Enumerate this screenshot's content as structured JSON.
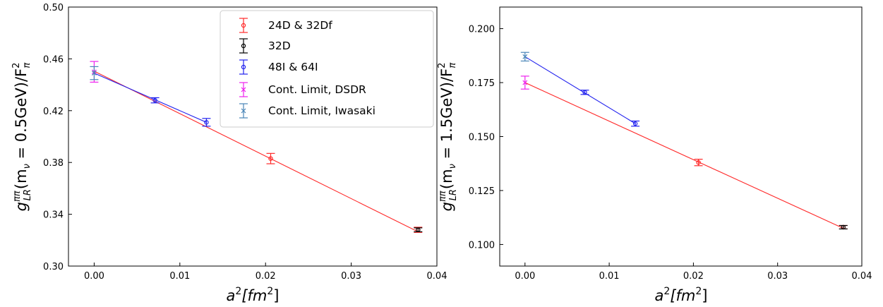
{
  "chart_data": [
    {
      "type": "scatter",
      "xlabel_parts": [
        "a",
        "2",
        "[fm",
        "2",
        "]"
      ],
      "ylabel_parts": [
        "g",
        "ππ",
        "LR",
        "(m",
        "ν",
        " = 0.5GeV)/F",
        "2",
        "π"
      ],
      "xlim": [
        -0.003,
        0.04
      ],
      "ylim": [
        0.3,
        0.5
      ],
      "xticks": [
        "0.00",
        "0.01",
        "0.02",
        "0.03",
        "0.04"
      ],
      "yticks": [
        "0.30",
        "0.34",
        "0.38",
        "0.42",
        "0.46",
        "0.50"
      ],
      "legend_position": "top-right",
      "series": [
        {
          "name": "24D & 32Df",
          "color": "#ff2a2a",
          "marker": "circle",
          "x": [
            0.0206,
            0.0378
          ],
          "y": [
            0.383,
            0.328
          ],
          "err": [
            0.004,
            0.002
          ],
          "fit": [
            [
              0.0,
              0.4505
            ],
            [
              0.0378,
              0.3265
            ]
          ]
        },
        {
          "name": "32D",
          "color": "#000000",
          "marker": "circle",
          "x": [
            0.0378
          ],
          "y": [
            0.328
          ],
          "err": [
            0.0015
          ],
          "fit": []
        },
        {
          "name": "48I & 64I",
          "color": "#2222ee",
          "marker": "circle",
          "x": [
            0.0071,
            0.0131
          ],
          "y": [
            0.428,
            0.411
          ],
          "err": [
            0.002,
            0.003
          ],
          "fit": [
            [
              0.0,
              0.449
            ],
            [
              0.0131,
              0.411
            ]
          ]
        },
        {
          "name": "Cont. Limit, DSDR",
          "color": "#ee22ee",
          "marker": "x",
          "x": [
            0.0
          ],
          "y": [
            0.45
          ],
          "err": [
            0.008
          ],
          "fit": []
        },
        {
          "name": "Cont. Limit, Iwasaki",
          "color": "#4a86b8",
          "marker": "x",
          "x": [
            0.0
          ],
          "y": [
            0.449
          ],
          "err": [
            0.005
          ],
          "fit": []
        }
      ]
    },
    {
      "type": "scatter",
      "xlabel_parts": [
        "a",
        "2",
        "[fm",
        "2",
        "]"
      ],
      "ylabel_parts": [
        "g",
        "ππ",
        "LR",
        "(m",
        "ν",
        " = 1.5GeV)/F",
        "2",
        "π"
      ],
      "xlim": [
        -0.003,
        0.04
      ],
      "ylim": [
        0.09,
        0.21
      ],
      "xticks": [
        "0.00",
        "0.01",
        "0.02",
        "0.03",
        "0.04"
      ],
      "yticks": [
        "0.100",
        "0.125",
        "0.150",
        "0.175",
        "0.200"
      ],
      "series": [
        {
          "name": "24D & 32Df",
          "color": "#ff2a2a",
          "marker": "circle",
          "x": [
            0.0206,
            0.0378
          ],
          "y": [
            0.138,
            0.108
          ],
          "err": [
            0.0015,
            0.0008
          ],
          "fit": [
            [
              0.0,
              0.175
            ],
            [
              0.0378,
              0.1075
            ]
          ]
        },
        {
          "name": "32D",
          "color": "#000000",
          "marker": "circle",
          "x": [
            0.0378
          ],
          "y": [
            0.108
          ],
          "err": [
            0.0008
          ],
          "fit": []
        },
        {
          "name": "48I & 64I",
          "color": "#2222ee",
          "marker": "circle",
          "x": [
            0.0071,
            0.0131
          ],
          "y": [
            0.1705,
            0.156
          ],
          "err": [
            0.001,
            0.0012
          ],
          "fit": [
            [
              0.0,
              0.187
            ],
            [
              0.0131,
              0.156
            ]
          ]
        },
        {
          "name": "Cont. Limit, DSDR",
          "color": "#ee22ee",
          "marker": "x",
          "x": [
            0.0
          ],
          "y": [
            0.175
          ],
          "err": [
            0.003
          ],
          "fit": []
        },
        {
          "name": "Cont. Limit, Iwasaki",
          "color": "#4a86b8",
          "marker": "x",
          "x": [
            0.0
          ],
          "y": [
            0.187
          ],
          "err": [
            0.002
          ],
          "fit": []
        }
      ]
    }
  ]
}
